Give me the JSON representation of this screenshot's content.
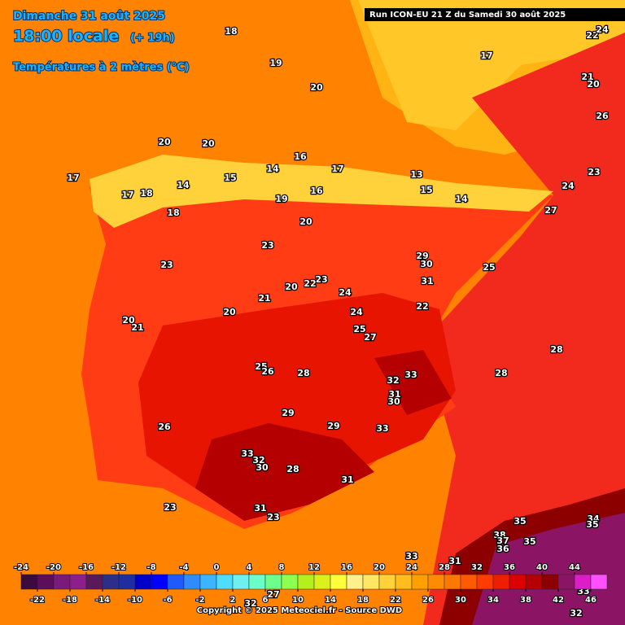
{
  "header": {
    "date": "Dimanche 31 août 2025",
    "time": "18:00 locale",
    "lead": "(+ 19h)",
    "field": "Températures à 2 mètres (°C)",
    "run": "Run ICON-EU 21 Z du Samedi 30 août 2025"
  },
  "map": {
    "labels": [
      18,
      19,
      20,
      17,
      22,
      24,
      21,
      20,
      26,
      20,
      20,
      16,
      17,
      17,
      15,
      14,
      13,
      23,
      14,
      15,
      16,
      19,
      14,
      24,
      27,
      17,
      18,
      18,
      20,
      23,
      29,
      30,
      25,
      23,
      31,
      23,
      22,
      20,
      24,
      21,
      24,
      20,
      20,
      21,
      25,
      27,
      22,
      28,
      25,
      26,
      28,
      32,
      33,
      28,
      31,
      30,
      29,
      26,
      29,
      33,
      33,
      32,
      30,
      28,
      31,
      23,
      31,
      23,
      35,
      34,
      35,
      38,
      37,
      35,
      36,
      33,
      31,
      32,
      27,
      33,
      32
    ]
  },
  "legend": {
    "ticks": [
      -24,
      -22,
      -20,
      -18,
      -16,
      -14,
      -12,
      -10,
      -8,
      -6,
      -4,
      -2,
      0,
      2,
      4,
      6,
      8,
      10,
      12,
      14,
      16,
      18,
      20,
      22,
      24,
      26,
      28,
      30,
      32,
      34,
      36,
      38,
      40,
      42,
      44,
      46
    ],
    "colors": [
      "#3c0a3c",
      "#5c0d5c",
      "#7a1a7a",
      "#8c1f8c",
      "#5a1a5a",
      "#2e2e8a",
      "#1e2ea0",
      "#0000c8",
      "#0000ff",
      "#1e5aff",
      "#2e8cff",
      "#3cb4ff",
      "#50dcff",
      "#6cf0f0",
      "#6cffc8",
      "#6cff8c",
      "#8cff50",
      "#b4f01e",
      "#dcf01e",
      "#ffff3c",
      "#fff08c",
      "#ffe664",
      "#ffd23c",
      "#ffbe1e",
      "#ffa000",
      "#ff8c00",
      "#ff7800",
      "#ff5a00",
      "#ff3c00",
      "#f01e00",
      "#dc0000",
      "#b40000",
      "#8c0000",
      "#8c1464",
      "#dc1ec8",
      "#ff50ff"
    ]
  },
  "footer": {
    "copyright": "Copyright © 2025 Meteociel.fr - Source DWD"
  }
}
